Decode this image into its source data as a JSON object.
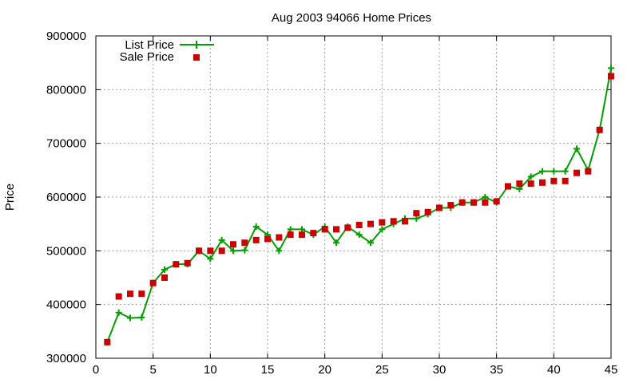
{
  "chart_data": {
    "type": "line",
    "title": "Aug 2003 94066 Home Prices",
    "xlabel": "",
    "ylabel": "Price",
    "xlim": [
      0,
      45
    ],
    "ylim": [
      300000,
      900000
    ],
    "x_ticks": [
      "0",
      "5",
      "10",
      "15",
      "20",
      "25",
      "30",
      "35",
      "40",
      "45"
    ],
    "y_ticks": [
      "300000",
      "400000",
      "500000",
      "600000",
      "700000",
      "800000",
      "900000"
    ],
    "grid": true,
    "legend_position": "top-left",
    "x": [
      1,
      2,
      3,
      4,
      5,
      6,
      7,
      8,
      9,
      10,
      11,
      12,
      13,
      14,
      15,
      16,
      17,
      18,
      19,
      20,
      21,
      22,
      23,
      24,
      25,
      26,
      27,
      28,
      29,
      30,
      31,
      32,
      33,
      34,
      35,
      36,
      37,
      38,
      39,
      40,
      41,
      42,
      43,
      44,
      45
    ],
    "series": [
      {
        "name": "List Price",
        "style": "line-points",
        "color": "#00a000",
        "values": [
          330000,
          385000,
          375000,
          376000,
          440000,
          465000,
          475000,
          475000,
          500000,
          485000,
          520000,
          500000,
          501000,
          545000,
          530000,
          500000,
          540000,
          540000,
          530000,
          545000,
          515000,
          545000,
          530000,
          515000,
          540000,
          550000,
          560000,
          560000,
          568000,
          580000,
          580000,
          590000,
          590000,
          600000,
          590000,
          620000,
          615000,
          638000,
          648000,
          648000,
          648000,
          690000,
          650000,
          725000,
          840000
        ]
      },
      {
        "name": "Sale Price",
        "style": "points",
        "color": "#cc0000",
        "values": [
          330000,
          415000,
          420000,
          420000,
          440000,
          450000,
          475000,
          477000,
          500000,
          500000,
          500000,
          512000,
          515000,
          520000,
          522000,
          525000,
          530000,
          530000,
          533000,
          540000,
          540000,
          543000,
          548000,
          550000,
          553000,
          555000,
          555000,
          570000,
          572000,
          580000,
          585000,
          590000,
          590000,
          590000,
          592000,
          620000,
          625000,
          625000,
          627000,
          630000,
          630000,
          645000,
          648000,
          725000,
          825000
        ]
      }
    ]
  }
}
